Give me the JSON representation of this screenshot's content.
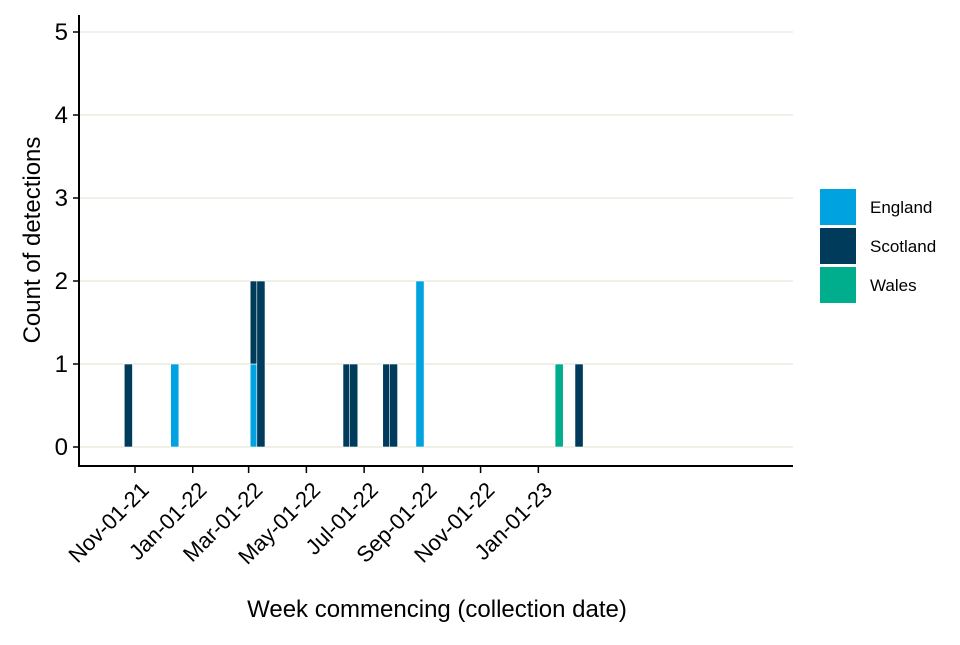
{
  "chart_data": {
    "type": "bar",
    "stacked": true,
    "title": "",
    "xlabel": "Week commencing (collection date)",
    "ylabel": "Count of detections",
    "ylim": [
      0,
      5
    ],
    "yticks": [
      0,
      1,
      2,
      3,
      4,
      5
    ],
    "grid": "horizontal",
    "legend_placement": "right",
    "x_tick_dates": [
      "2021-11-01",
      "2022-01-01",
      "2022-03-01",
      "2022-05-01",
      "2022-07-01",
      "2022-09-01",
      "2022-11-01",
      "2023-01-01"
    ],
    "x_tick_labels": [
      "Nov-01-21",
      "Jan-01-22",
      "Mar-01-22",
      "May-01-22",
      "Jul-01-22",
      "Sep-01-22",
      "Nov-01-22",
      "Jan-01-23"
    ],
    "x_range": [
      "2021-09-26",
      "2023-03-12"
    ],
    "series": [
      {
        "name": "England",
        "color": "#00A3E0",
        "points": [
          {
            "x": "2021-12-13",
            "y": 1
          },
          {
            "x": "2022-03-07",
            "y": 1
          },
          {
            "x": "2022-08-29",
            "y": 2
          }
        ]
      },
      {
        "name": "Scotland",
        "color": "#003B5C",
        "points": [
          {
            "x": "2021-10-25",
            "y": 1
          },
          {
            "x": "2022-03-07",
            "y": 1
          },
          {
            "x": "2022-03-14",
            "y": 2
          },
          {
            "x": "2022-06-13",
            "y": 1
          },
          {
            "x": "2022-06-20",
            "y": 1
          },
          {
            "x": "2022-07-25",
            "y": 1
          },
          {
            "x": "2022-08-01",
            "y": 1
          },
          {
            "x": "2023-02-13",
            "y": 1
          }
        ]
      },
      {
        "name": "Wales",
        "color": "#00AE8E",
        "points": [
          {
            "x": "2023-01-23",
            "y": 1
          }
        ]
      }
    ]
  }
}
